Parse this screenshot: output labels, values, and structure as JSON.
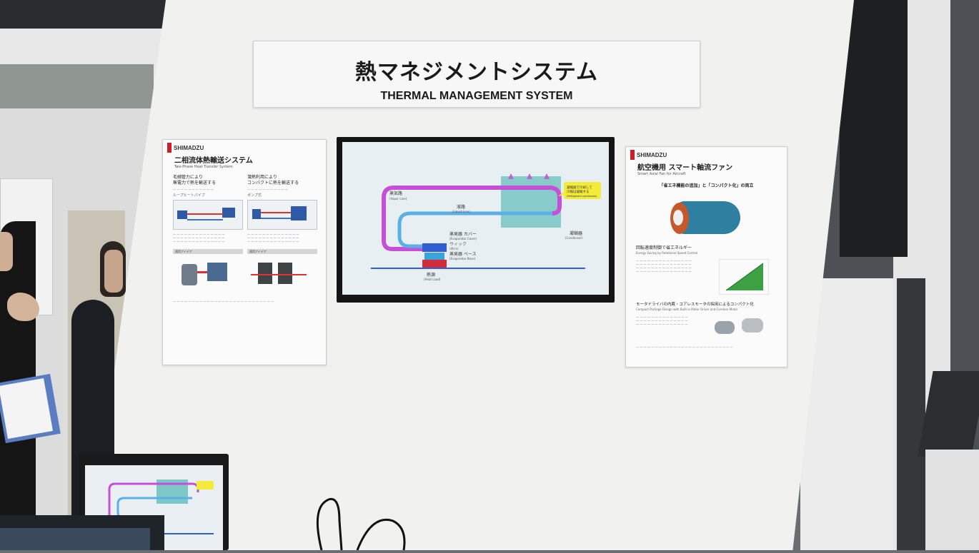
{
  "title_sign": {
    "title_jp": "熱マネジメントシステム",
    "title_en": "THERMAL MANAGEMENT SYSTEM"
  },
  "left_poster": {
    "logo": "SHIMADZU",
    "title": "二相流体熱輸送システム",
    "subtitle": "Two-Phase Heat Transfer System",
    "col1_heading": "毛細管力により\n無電力で熱を輸送する",
    "col2_heading": "潜熱利用により\nコンパクトに熱を輸送する",
    "col1_tag": "ループヒートパイプ",
    "col2_tag": "ポンプ式",
    "bar_left": "適用アイデア",
    "bar_right": "適用アイデア"
  },
  "right_poster": {
    "logo": "SHIMADZU",
    "title": "航空機用 スマート軸流ファン",
    "subtitle": "Smart Axial Fan for Aircraft",
    "banner": "「省エネ機能の追加」と「コンパクト化」の両立",
    "section1": "回転速度制御で省エネルギー",
    "section1_en": "Energy Saving by Rotational Speed Control",
    "section2": "モータドライバの内蔵・コアレスモータの採用によるコンパクト化",
    "section2_en": "Compact Package Design with Built-in Motor Driver and Coreless Motor"
  },
  "monitor_diagram": {
    "vapor_line": "蒸気路",
    "vapor_line_en": "(Vapor Line)",
    "liquid_line": "液路",
    "liquid_line_en": "(Liquid Line)",
    "condenser": "凝縮器",
    "condenser_en": "(Condenser)",
    "evaporator_cover": "蒸発器 カバー",
    "evaporator_cover_en": "(Evaporator Cover)",
    "wick": "ウィック",
    "wick_en": "(Wick)",
    "evaporator_base": "蒸発器 ベース",
    "evaporator_base_en": "(Evaporator Base)",
    "heat_source": "熱源",
    "heat_source_en": "(Heat Load)",
    "callout": "凝縮器で冷却して\n冷媒は凝縮する",
    "callout_en": "(Refrigerant condenses)",
    "colors": {
      "vapor": "#c54fd6",
      "liquid": "#5ab0e6",
      "condenser": "#7cc7c7",
      "heat": "#d42b3a",
      "base_line": "#2f5fd3",
      "callout": "#f3ea3a"
    }
  },
  "small_monitor": {
    "note": ""
  }
}
